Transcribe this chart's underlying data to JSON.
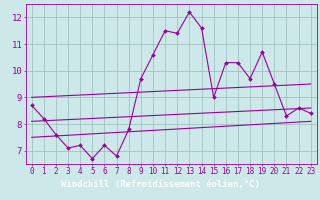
{
  "title": "",
  "xlabel": "Windchill (Refroidissement éolien,°C)",
  "bg_color": "#cce8e8",
  "plot_bg": "#cce8e8",
  "line_color": "#990099",
  "grid_color": "#99bbbb",
  "xlabel_bg": "#660066",
  "xlabel_fg": "#ffffff",
  "x_hours": [
    0,
    1,
    2,
    3,
    4,
    5,
    6,
    7,
    8,
    9,
    10,
    11,
    12,
    13,
    14,
    15,
    16,
    17,
    18,
    19,
    20,
    21,
    22,
    23
  ],
  "main_data": [
    8.7,
    8.2,
    7.6,
    7.1,
    7.2,
    6.7,
    7.2,
    6.8,
    7.8,
    9.7,
    10.6,
    11.5,
    11.4,
    12.2,
    11.6,
    9.0,
    10.3,
    10.3,
    9.7,
    10.7,
    9.5,
    8.3,
    8.6,
    8.4
  ],
  "trend1_start": 9.0,
  "trend1_end": 9.5,
  "trend2_start": 8.1,
  "trend2_end": 8.6,
  "trend3_start": 7.5,
  "trend3_end": 8.1,
  "ylim": [
    6.5,
    12.5
  ],
  "yticks": [
    7,
    8,
    9,
    10,
    11,
    12
  ],
  "xlim": [
    -0.5,
    23.5
  ],
  "tick_fontsize": 5.5,
  "label_fontsize": 6.5
}
